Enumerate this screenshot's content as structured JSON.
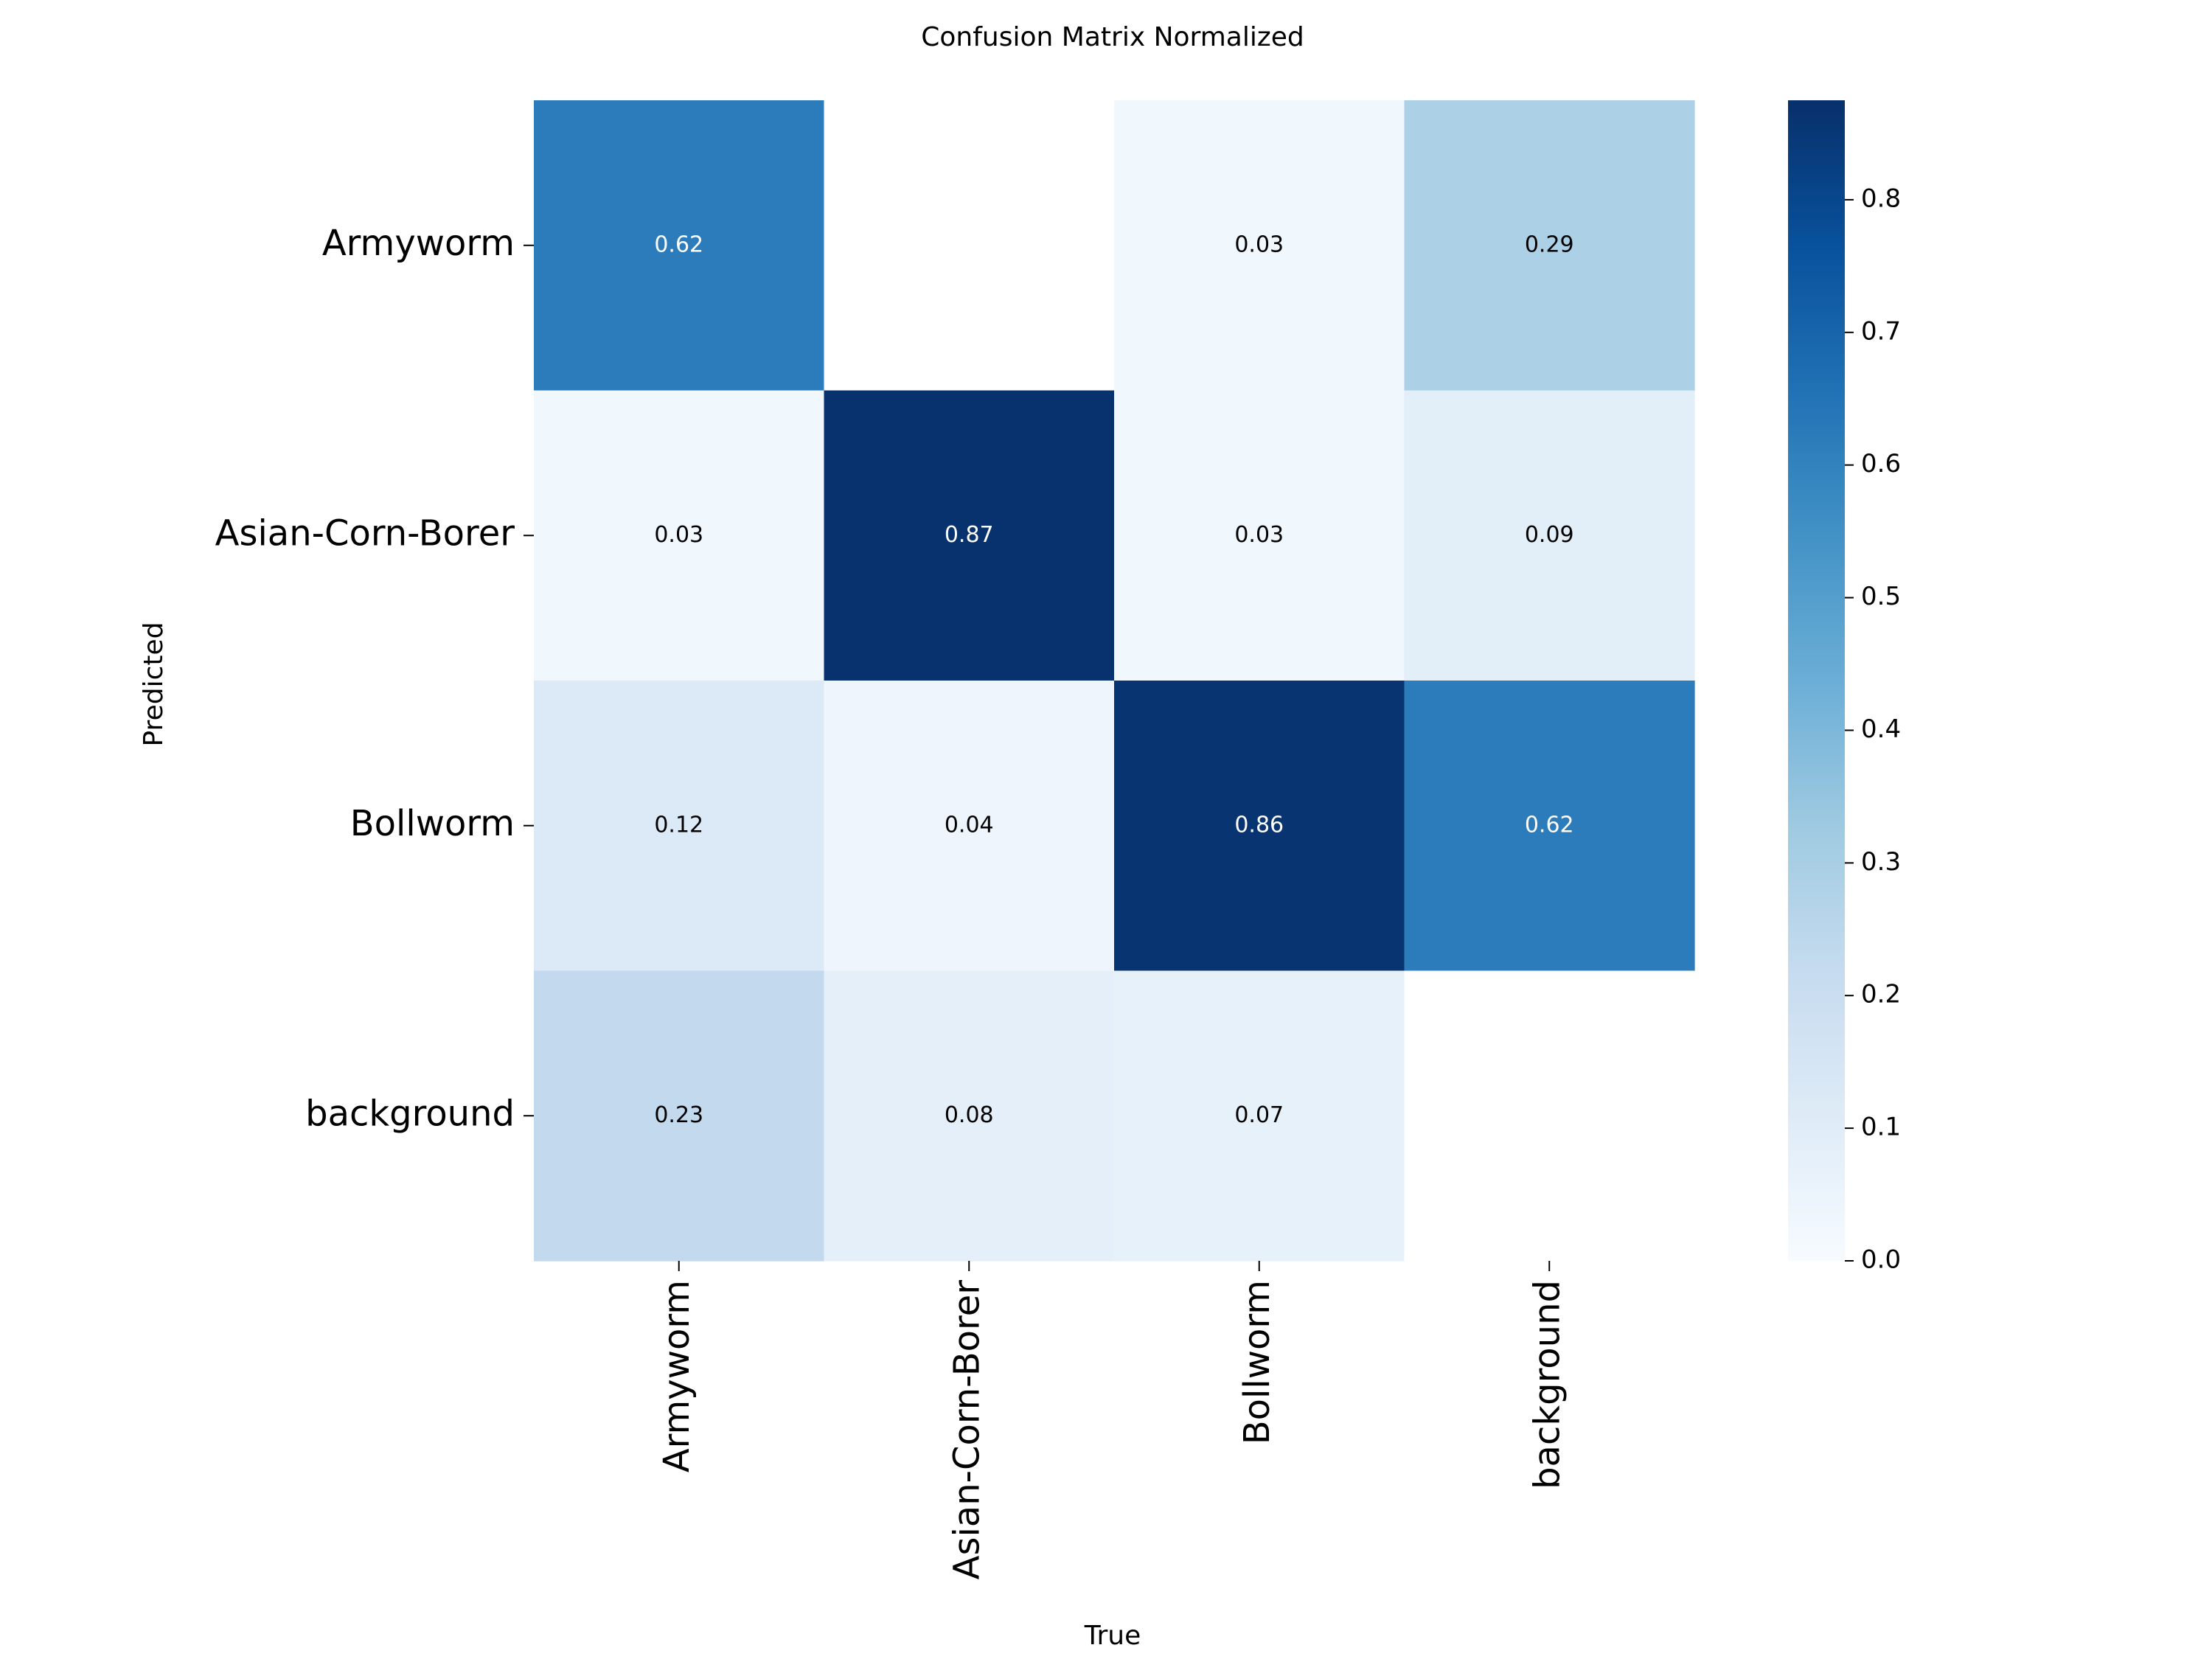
{
  "chart_data": {
    "type": "heatmap",
    "title": "Confusion Matrix Normalized",
    "xlabel": "True",
    "ylabel": "Predicted",
    "x_categories": [
      "Armyworm",
      "Asian-Corn-Borer",
      "Bollworm",
      "background"
    ],
    "y_categories": [
      "Armyworm",
      "Asian-Corn-Borer",
      "Bollworm",
      "background"
    ],
    "values": [
      [
        0.62,
        null,
        0.03,
        0.29
      ],
      [
        0.03,
        0.87,
        0.03,
        0.09
      ],
      [
        0.12,
        0.04,
        0.86,
        0.62
      ],
      [
        0.23,
        0.08,
        0.07,
        null
      ]
    ],
    "cell_labels": [
      [
        "0.62",
        "",
        "0.03",
        "0.29"
      ],
      [
        "0.03",
        "0.87",
        "0.03",
        "0.09"
      ],
      [
        "0.12",
        "0.04",
        "0.86",
        "0.62"
      ],
      [
        "0.23",
        "0.08",
        "0.07",
        ""
      ]
    ],
    "colormap": "Blues",
    "colorbar": {
      "vmin": 0.0,
      "vmax": 0.875,
      "ticks": [
        0.0,
        0.1,
        0.2,
        0.3,
        0.4,
        0.5,
        0.6,
        0.7,
        0.8
      ],
      "tick_labels": [
        "0.0",
        "0.1",
        "0.2",
        "0.3",
        "0.4",
        "0.5",
        "0.6",
        "0.7",
        "0.8"
      ]
    }
  }
}
